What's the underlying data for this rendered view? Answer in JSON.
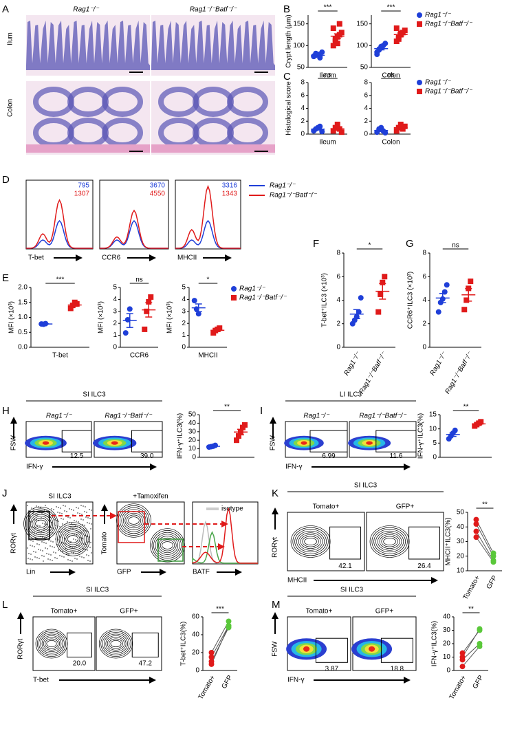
{
  "panel_labels": [
    "A",
    "B",
    "C",
    "D",
    "E",
    "F",
    "G",
    "H",
    "I",
    "J",
    "K",
    "L",
    "M"
  ],
  "strains": [
    "Rag1⁻/⁻",
    "Rag1⁻/⁻Batf⁻/⁻"
  ],
  "A": {
    "rows": [
      "Ilum",
      "Colon"
    ]
  },
  "D": {
    "mfi": [
      [
        795,
        1307
      ],
      [
        3670,
        4550
      ],
      [
        3316,
        1343
      ]
    ],
    "markers": [
      "T-bet",
      "CCR6",
      "MHCII"
    ]
  },
  "H": {
    "title": "SI ILC3",
    "y": "FSW",
    "x": "IFN-γ",
    "gates": [
      12.5,
      {
        "value": 39,
        "label": "39.0"
      }
    ]
  },
  "I": {
    "title": "LI ILC3",
    "y": "FSW",
    "x": "IFN-γ",
    "gates": [
      6.99,
      11.6
    ]
  },
  "J": {
    "title": "SI ILC3",
    "treatment": "+Tamoxifen",
    "isotype": "isotype",
    "axes": [
      "RORγt",
      "Lin",
      "Tomato",
      "GFP",
      "BATF"
    ]
  },
  "K": {
    "title": "SI ILC3",
    "columns": [
      "Tomato+",
      "GFP+"
    ],
    "y": "RORγt",
    "x": "MHCII",
    "gates": [
      42.1,
      26.4
    ]
  },
  "L": {
    "title": "SI ILC3",
    "columns": [
      "Tomato+",
      "GFP+"
    ],
    "y": "RORγt",
    "x": "T-bet",
    "gates": [
      {
        "value": 20,
        "label": "20.0"
      },
      47.2
    ]
  },
  "M": {
    "title": "SI ILC3",
    "columns": [
      "Tomato+",
      "GFP+"
    ],
    "y": "FSW",
    "x": "IFN-γ",
    "gates": [
      3.87,
      18.8
    ]
  },
  "charts": [
    {
      "type": "dot",
      "ylabel": "Crypt length (μm)",
      "ylim": [
        50,
        170
      ],
      "yticks": [
        50,
        100,
        150
      ],
      "category": "Ileum",
      "sig": "***",
      "series": [
        {
          "color": "#1f3fd8",
          "marker": "circle",
          "values": [
            75,
            78,
            80,
            72,
            85,
            76,
            82,
            79,
            74
          ]
        },
        {
          "color": "#e01a1a",
          "marker": "square",
          "values": [
            100,
            110,
            120,
            125,
            130,
            140,
            115,
            105,
            150
          ]
        }
      ]
    },
    {
      "type": "dot",
      "ylim": [
        50,
        170
      ],
      "yticks": [
        50,
        100,
        150
      ],
      "category": "Colon",
      "sig": "***",
      "series": [
        {
          "color": "#1f3fd8",
          "marker": "circle",
          "values": [
            85,
            90,
            95,
            100,
            105,
            80,
            92,
            98
          ]
        },
        {
          "color": "#e01a1a",
          "marker": "square",
          "values": [
            110,
            120,
            125,
            130,
            135,
            140,
            115,
            128
          ]
        }
      ]
    },
    {
      "type": "dot",
      "ylabel": "Histological score",
      "ylim": [
        0,
        8
      ],
      "yticks": [
        0,
        2,
        4,
        6,
        8
      ],
      "category": "Ileum",
      "sig": "ns",
      "series": [
        {
          "color": "#1f3fd8",
          "marker": "circle",
          "values": [
            0.5,
            0.8,
            1,
            1.2,
            0.4
          ]
        },
        {
          "color": "#e01a1a",
          "marker": "square",
          "values": [
            0.5,
            1,
            1.5,
            0.8,
            0.3
          ]
        }
      ]
    },
    {
      "type": "dot",
      "ylim": [
        0,
        8
      ],
      "yticks": [
        0,
        2,
        4,
        6,
        8
      ],
      "category": "Colon",
      "sig": "ns",
      "series": [
        {
          "color": "#1f3fd8",
          "marker": "circle",
          "values": [
            0.3,
            0.8,
            1,
            0.5,
            0.2
          ]
        },
        {
          "color": "#e01a1a",
          "marker": "square",
          "values": [
            0.5,
            1,
            1.5,
            0.8,
            1.2
          ]
        }
      ]
    },
    {
      "type": "dot",
      "ylabel": "MFI (×10³)",
      "ylim": [
        0,
        2
      ],
      "yticks": [
        {
          "value": 0,
          "label": "0.0"
        },
        0.5,
        {
          "value": 1,
          "label": "1.0"
        },
        1.5,
        {
          "value": 2,
          "label": "2.0"
        }
      ],
      "category": "T-bet",
      "sig": "***",
      "series": [
        {
          "color": "#1f3fd8",
          "marker": "circle",
          "values": [
            0.78,
            0.77,
            0.79
          ]
        },
        {
          "color": "#e01a1a",
          "marker": "square",
          "values": [
            1.3,
            1.4,
            1.5,
            1.45
          ]
        }
      ]
    },
    {
      "type": "dot",
      "ylabel": "MFI (×10³)",
      "ylim": [
        0,
        5
      ],
      "yticks": [
        0,
        1,
        2,
        3,
        4,
        5
      ],
      "category": "CCR6",
      "sig": "ns",
      "series": [
        {
          "color": "#1f3fd8",
          "marker": "circle",
          "values": [
            1.2,
            2.3,
            3.2
          ]
        },
        {
          "color": "#e01a1a",
          "marker": "square",
          "values": [
            1.5,
            3,
            3.8,
            4.2
          ]
        }
      ]
    },
    {
      "type": "dot",
      "ylabel": "MFI (×10³)",
      "ylim": [
        0,
        5
      ],
      "yticks": [
        0,
        1,
        2,
        3,
        4,
        5
      ],
      "category": "MHCII",
      "sig": "*",
      "series": [
        {
          "color": "#1f3fd8",
          "marker": "circle",
          "values": [
            3.9,
            3.2,
            2.8
          ]
        },
        {
          "color": "#e01a1a",
          "marker": "square",
          "values": [
            1.2,
            1.4,
            1.5,
            1.6
          ]
        }
      ]
    },
    {
      "type": "dot",
      "ylabel": "T-bet⁺ILC3 (×10³)",
      "ylim": [
        0,
        8
      ],
      "yticks": [
        0,
        2,
        4,
        6,
        8
      ],
      "sig": "*",
      "rotate_labels": true,
      "series": [
        {
          "color": "#1f3fd8",
          "marker": "circle",
          "values": [
            2,
            2.3,
            2.6,
            3,
            4.2
          ]
        },
        {
          "color": "#e01a1a",
          "marker": "square",
          "values": [
            3,
            4.5,
            5.5,
            6
          ]
        }
      ]
    },
    {
      "type": "dot",
      "ylabel": "CCR6⁺ILC3 (×10³)",
      "ylim": [
        0,
        8
      ],
      "yticks": [
        0,
        2,
        4,
        6,
        8
      ],
      "sig": "ns",
      "rotate_labels": true,
      "series": [
        {
          "color": "#1f3fd8",
          "marker": "circle",
          "values": [
            3,
            3.8,
            4.1,
            4.7,
            5.3
          ]
        },
        {
          "color": "#e01a1a",
          "marker": "square",
          "values": [
            3.2,
            4,
            5,
            5.6
          ]
        }
      ]
    },
    {
      "type": "dot",
      "ylabel": "IFN-γ⁺ILC3(%)",
      "ylim": [
        0,
        50
      ],
      "yticks": [
        0,
        10,
        20,
        30,
        40,
        50
      ],
      "sig": "**",
      "series": [
        {
          "color": "#1f3fd8",
          "marker": "circle",
          "values": [
            12,
            12.5,
            13,
            14
          ]
        },
        {
          "color": "#e01a1a",
          "marker": "square",
          "values": [
            20,
            25,
            30,
            35,
            38
          ]
        }
      ]
    },
    {
      "type": "dot",
      "ylabel": "IFN-γ⁺ILC3(%)",
      "ylim": [
        0,
        15
      ],
      "yticks": [
        0,
        5,
        10,
        15
      ],
      "sig": "**",
      "series": [
        {
          "color": "#1f3fd8",
          "marker": "circle",
          "values": [
            6.5,
            7.5,
            8.5,
            9.5
          ]
        },
        {
          "color": "#e01a1a",
          "marker": "square",
          "values": [
            11,
            11.5,
            12,
            12.5
          ]
        }
      ]
    },
    {
      "type": "paired",
      "ylabel": "MHCII⁺ILC3(%)",
      "ylim": [
        10,
        50
      ],
      "yticks": [
        10,
        20,
        30,
        40,
        50
      ],
      "sig": "**",
      "categories": [
        "Tomato+",
        "GFP"
      ],
      "rotate_labels": true,
      "series": [
        {
          "color": "#e01a1a",
          "marker": "circle",
          "values": [
            45,
            42,
            37,
            33
          ]
        },
        {
          "color": "#5ac83a",
          "marker": "circle",
          "values": [
            22,
            20,
            17,
            16
          ]
        }
      ]
    },
    {
      "type": "paired",
      "ylabel": "T-bet⁺ILC3(%)",
      "ylim": [
        0,
        60
      ],
      "yticks": [
        0,
        20,
        40,
        60
      ],
      "sig": "***",
      "categories": [
        "Tomato+",
        "GFP"
      ],
      "rotate_labels": true,
      "series": [
        {
          "color": "#e01a1a",
          "marker": "circle",
          "values": [
            20,
            15,
            10,
            7
          ]
        },
        {
          "color": "#5ac83a",
          "marker": "circle",
          "values": [
            55,
            50,
            48,
            50
          ]
        }
      ]
    },
    {
      "type": "paired",
      "ylabel": "IFN-γ⁺ILC3(%)",
      "ylim": [
        0,
        40
      ],
      "yticks": [
        0,
        10,
        20,
        30,
        40
      ],
      "sig": "**",
      "categories": [
        "Tomato+",
        "GFP"
      ],
      "rotate_labels": true,
      "series": [
        {
          "color": "#e01a1a",
          "marker": "circle",
          "values": [
            13,
            10,
            8,
            3
          ]
        },
        {
          "color": "#5ac83a",
          "marker": "circle",
          "values": [
            30,
            31,
            20,
            18
          ]
        }
      ]
    }
  ]
}
